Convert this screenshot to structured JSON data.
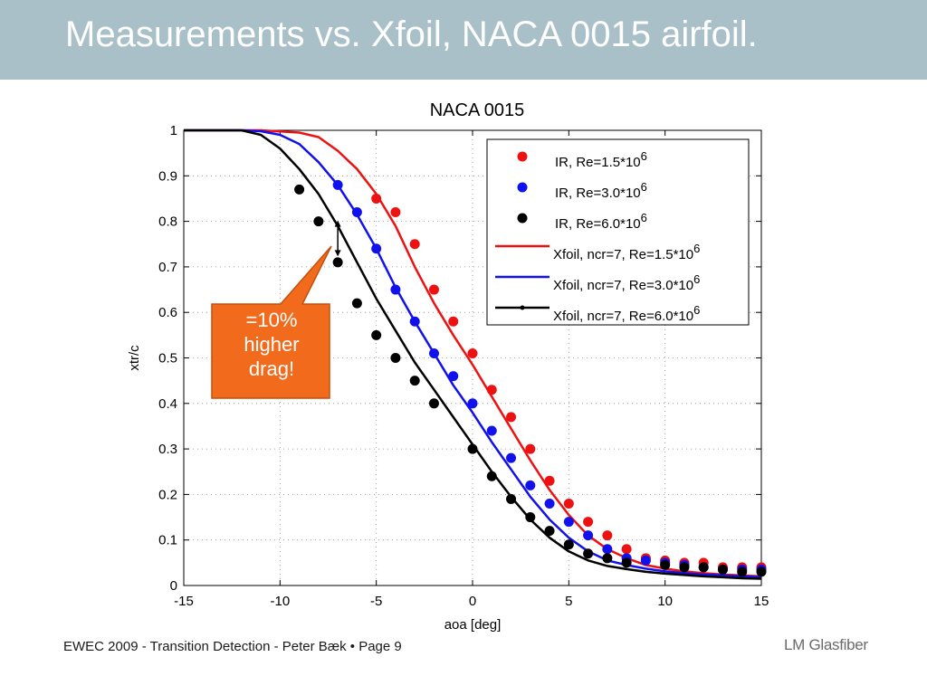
{
  "slide": {
    "title": "Measurements vs. Xfoil, NACA 0015 airfoil.",
    "footer": "EWEC 2009 - Transition Detection - Peter Bæk • Page 9",
    "brand": "LM Glasfiber",
    "callout": [
      "=10%",
      "higher",
      "drag!"
    ],
    "colors": {
      "header": "#a9c0c9",
      "callout_fill": "#f26b1d",
      "callout_stroke": "#c44f0e"
    }
  },
  "chart_data": {
    "type": "scatter",
    "title": "NACA 0015",
    "xlabel": "aoa [deg]",
    "ylabel": "xtr/c",
    "xlim": [
      -15,
      15
    ],
    "ylim": [
      0,
      1
    ],
    "xticks": [
      -15,
      -10,
      -5,
      0,
      5,
      10,
      15
    ],
    "yticks": [
      0,
      0.1,
      0.2,
      0.3,
      0.4,
      0.5,
      0.6,
      0.7,
      0.8,
      0.9,
      1
    ],
    "grid": "dotted",
    "legend_position": "top-right",
    "series": [
      {
        "name": "IR, Re=1.5*10",
        "sup": "6",
        "kind": "markers",
        "color": "#ee1111",
        "points": [
          [
            -5,
            0.85
          ],
          [
            -4,
            0.82
          ],
          [
            -3,
            0.75
          ],
          [
            -2,
            0.65
          ],
          [
            -1,
            0.58
          ],
          [
            0,
            0.51
          ],
          [
            1,
            0.43
          ],
          [
            2,
            0.37
          ],
          [
            3,
            0.3
          ],
          [
            4,
            0.23
          ],
          [
            5,
            0.18
          ],
          [
            6,
            0.14
          ],
          [
            7,
            0.11
          ],
          [
            8,
            0.08
          ],
          [
            9,
            0.06
          ],
          [
            10,
            0.055
          ],
          [
            11,
            0.05
          ],
          [
            12,
            0.05
          ],
          [
            13,
            0.04
          ],
          [
            14,
            0.04
          ],
          [
            15,
            0.04
          ]
        ]
      },
      {
        "name": "IR, Re=3.0*10",
        "sup": "6",
        "kind": "markers",
        "color": "#1111ee",
        "points": [
          [
            -7,
            0.88
          ],
          [
            -6,
            0.82
          ],
          [
            -5,
            0.74
          ],
          [
            -4,
            0.65
          ],
          [
            -3,
            0.58
          ],
          [
            -2,
            0.51
          ],
          [
            -1,
            0.46
          ],
          [
            0,
            0.4
          ],
          [
            1,
            0.34
          ],
          [
            2,
            0.28
          ],
          [
            3,
            0.22
          ],
          [
            4,
            0.18
          ],
          [
            5,
            0.14
          ],
          [
            6,
            0.11
          ],
          [
            7,
            0.08
          ],
          [
            8,
            0.06
          ],
          [
            9,
            0.055
          ],
          [
            10,
            0.05
          ],
          [
            11,
            0.045
          ],
          [
            12,
            0.04
          ],
          [
            13,
            0.035
          ],
          [
            14,
            0.035
          ],
          [
            15,
            0.035
          ]
        ]
      },
      {
        "name": "IR, Re=6.0*10",
        "sup": "6",
        "kind": "markers",
        "color": "#000000",
        "points": [
          [
            -9,
            0.87
          ],
          [
            -8,
            0.8
          ],
          [
            -7,
            0.71
          ],
          [
            -6,
            0.62
          ],
          [
            -5,
            0.55
          ],
          [
            -4,
            0.5
          ],
          [
            -3,
            0.45
          ],
          [
            -2,
            0.4
          ],
          [
            0,
            0.3
          ],
          [
            1,
            0.24
          ],
          [
            2,
            0.19
          ],
          [
            3,
            0.15
          ],
          [
            4,
            0.12
          ],
          [
            5,
            0.09
          ],
          [
            6,
            0.07
          ],
          [
            7,
            0.06
          ],
          [
            8,
            0.05
          ],
          [
            10,
            0.045
          ],
          [
            11,
            0.04
          ],
          [
            12,
            0.04
          ],
          [
            13,
            0.035
          ],
          [
            14,
            0.03
          ],
          [
            15,
            0.03
          ]
        ]
      },
      {
        "name": "Xfoil, ncr=7, Re=1.5*10",
        "sup": "6",
        "kind": "line",
        "color": "#ee1111",
        "points": [
          [
            -15,
            1.0
          ],
          [
            -11,
            1.0
          ],
          [
            -9,
            0.995
          ],
          [
            -8,
            0.985
          ],
          [
            -7,
            0.955
          ],
          [
            -6,
            0.915
          ],
          [
            -5,
            0.86
          ],
          [
            -4,
            0.79
          ],
          [
            -3,
            0.7
          ],
          [
            -2,
            0.62
          ],
          [
            -1,
            0.55
          ],
          [
            0,
            0.485
          ],
          [
            1,
            0.415
          ],
          [
            2,
            0.345
          ],
          [
            3,
            0.275
          ],
          [
            4,
            0.21
          ],
          [
            5,
            0.155
          ],
          [
            6,
            0.11
          ],
          [
            7,
            0.08
          ],
          [
            8,
            0.06
          ],
          [
            9,
            0.045
          ],
          [
            10,
            0.037
          ],
          [
            11,
            0.031
          ],
          [
            12,
            0.027
          ],
          [
            13,
            0.024
          ],
          [
            14,
            0.022
          ],
          [
            15,
            0.02
          ]
        ]
      },
      {
        "name": "Xfoil, ncr=7, Re=3.0*10",
        "sup": "6",
        "kind": "line",
        "color": "#1111ee",
        "points": [
          [
            -15,
            1.0
          ],
          [
            -12,
            1.0
          ],
          [
            -11,
            0.998
          ],
          [
            -10,
            0.99
          ],
          [
            -9,
            0.97
          ],
          [
            -8,
            0.93
          ],
          [
            -7,
            0.88
          ],
          [
            -6,
            0.815
          ],
          [
            -5,
            0.74
          ],
          [
            -4,
            0.655
          ],
          [
            -3,
            0.58
          ],
          [
            -2,
            0.51
          ],
          [
            -1,
            0.44
          ],
          [
            0,
            0.38
          ],
          [
            1,
            0.315
          ],
          [
            2,
            0.255
          ],
          [
            3,
            0.195
          ],
          [
            4,
            0.145
          ],
          [
            5,
            0.105
          ],
          [
            6,
            0.075
          ],
          [
            7,
            0.055
          ],
          [
            8,
            0.045
          ],
          [
            9,
            0.037
          ],
          [
            10,
            0.031
          ],
          [
            11,
            0.027
          ],
          [
            12,
            0.024
          ],
          [
            13,
            0.022
          ],
          [
            14,
            0.02
          ],
          [
            15,
            0.018
          ]
        ]
      },
      {
        "name": "Xfoil, ncr=7, Re=6.0*10",
        "sup": "6",
        "kind": "line_marker",
        "color": "#000000",
        "points": [
          [
            -15,
            1.0
          ],
          [
            -12,
            1.0
          ],
          [
            -11,
            0.99
          ],
          [
            -10,
            0.96
          ],
          [
            -9,
            0.915
          ],
          [
            -8,
            0.86
          ],
          [
            -7,
            0.79
          ],
          [
            -6,
            0.71
          ],
          [
            -5,
            0.63
          ],
          [
            -4,
            0.56
          ],
          [
            -3,
            0.49
          ],
          [
            -2,
            0.43
          ],
          [
            -1,
            0.37
          ],
          [
            0,
            0.31
          ],
          [
            1,
            0.25
          ],
          [
            2,
            0.195
          ],
          [
            3,
            0.145
          ],
          [
            4,
            0.105
          ],
          [
            5,
            0.075
          ],
          [
            6,
            0.055
          ],
          [
            7,
            0.043
          ],
          [
            8,
            0.036
          ],
          [
            9,
            0.03
          ],
          [
            10,
            0.026
          ],
          [
            11,
            0.023
          ],
          [
            12,
            0.02
          ],
          [
            13,
            0.018
          ],
          [
            14,
            0.016
          ],
          [
            15,
            0.015
          ]
        ]
      }
    ]
  }
}
